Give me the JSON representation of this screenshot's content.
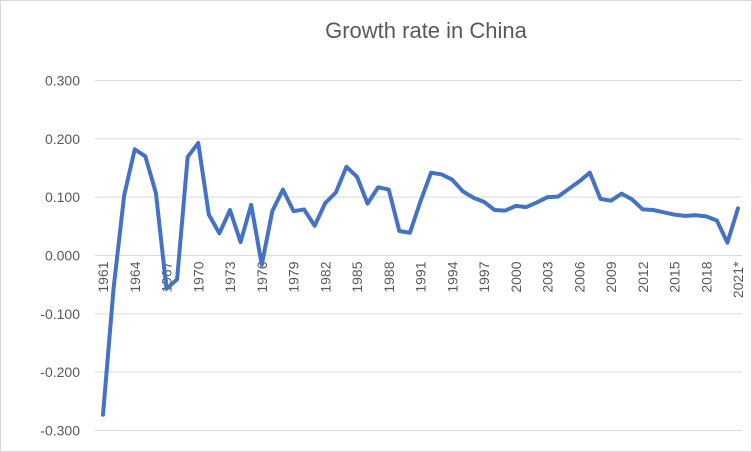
{
  "chart_data": {
    "type": "line",
    "title": "Growth rate in China",
    "xlabel": "",
    "ylabel": "",
    "ylim": [
      -0.3,
      0.3
    ],
    "y_ticks": [
      "0.300",
      "0.200",
      "0.100",
      "0.000",
      "-0.100",
      "-0.200",
      "-0.300"
    ],
    "y_tick_values": [
      0.3,
      0.2,
      0.1,
      0.0,
      -0.1,
      -0.2,
      -0.3
    ],
    "x_tick_labels": [
      "1961",
      "1964",
      "1967",
      "1970",
      "1973",
      "1976",
      "1979",
      "1982",
      "1985",
      "1988",
      "1991",
      "1994",
      "1997",
      "2000",
      "2003",
      "2006",
      "2009",
      "2012",
      "2015",
      "2018",
      "2021*"
    ],
    "grid": true,
    "legend": "none",
    "categories": [
      "1961",
      "1962",
      "1963",
      "1964",
      "1965",
      "1966",
      "1967",
      "1968",
      "1969",
      "1970",
      "1971",
      "1972",
      "1973",
      "1974",
      "1975",
      "1976",
      "1977",
      "1978",
      "1979",
      "1980",
      "1981",
      "1982",
      "1983",
      "1984",
      "1985",
      "1986",
      "1987",
      "1988",
      "1989",
      "1990",
      "1991",
      "1992",
      "1993",
      "1994",
      "1995",
      "1996",
      "1997",
      "1998",
      "1999",
      "2000",
      "2001",
      "2002",
      "2003",
      "2004",
      "2005",
      "2006",
      "2007",
      "2008",
      "2009",
      "2010",
      "2011",
      "2012",
      "2013",
      "2014",
      "2015",
      "2016",
      "2017",
      "2018",
      "2019",
      "2020",
      "2021*"
    ],
    "series": [
      {
        "color": "#4472c4",
        "values": [
          -0.273,
          -0.056,
          0.103,
          0.182,
          0.17,
          0.107,
          -0.057,
          -0.041,
          0.169,
          0.193,
          0.07,
          0.038,
          0.078,
          0.023,
          0.087,
          -0.016,
          0.076,
          0.113,
          0.076,
          0.079,
          0.051,
          0.09,
          0.108,
          0.152,
          0.135,
          0.089,
          0.117,
          0.113,
          0.042,
          0.039,
          0.093,
          0.142,
          0.139,
          0.13,
          0.11,
          0.099,
          0.092,
          0.078,
          0.077,
          0.085,
          0.083,
          0.091,
          0.1,
          0.101,
          0.114,
          0.127,
          0.142,
          0.097,
          0.094,
          0.106,
          0.096,
          0.079,
          0.078,
          0.074,
          0.07,
          0.068,
          0.069,
          0.067,
          0.06,
          0.022,
          0.081
        ]
      }
    ]
  }
}
